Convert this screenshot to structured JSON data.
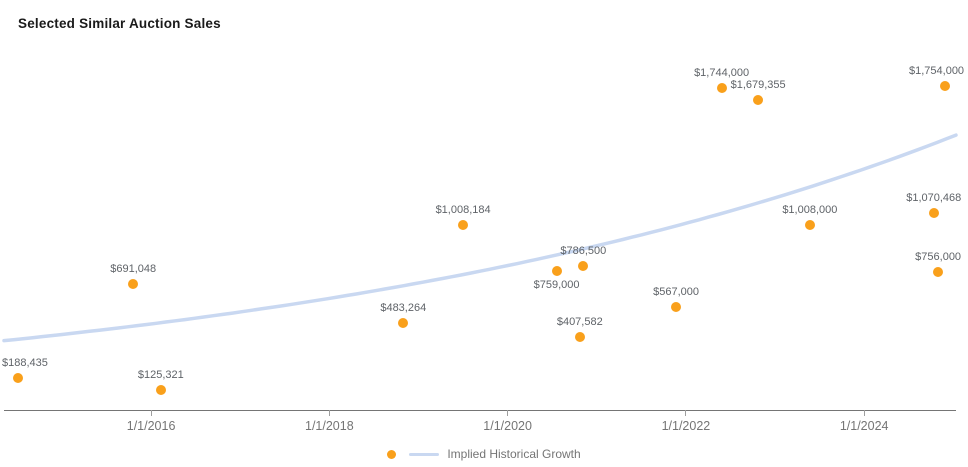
{
  "colors": {
    "point": "#F9A01B",
    "trend": "#C9D8F1",
    "axis": "#757575",
    "tick": "#9E9E9E",
    "point_label": "#5F6368",
    "tick_label": "#757575",
    "legend_text": "#757575",
    "title": "#1A1A1A",
    "background": "#FFFFFF"
  },
  "chart_data": {
    "type": "scatter",
    "title": "Selected Similar Auction Sales",
    "xlabel": "",
    "ylabel": "",
    "xlim": [
      2014.35,
      2025.03
    ],
    "ylim": [
      0,
      2000000
    ],
    "grid": false,
    "legend_position": "bottom-center",
    "x_axis": {
      "ticks": [
        {
          "year": 2016,
          "label": "1/1/2016"
        },
        {
          "year": 2018,
          "label": "1/1/2018"
        },
        {
          "year": 2020,
          "label": "1/1/2020"
        },
        {
          "year": 2022,
          "label": "1/1/2022"
        },
        {
          "year": 2024,
          "label": "1/1/2024"
        }
      ]
    },
    "points": [
      {
        "year": 2014.51,
        "value": 188435,
        "label": "$188,435",
        "label_pos": "above"
      },
      {
        "year": 2015.8,
        "value": 691048,
        "label": "$691,048",
        "label_pos": "above"
      },
      {
        "year": 2016.11,
        "value": 125321,
        "label": "$125,321",
        "label_pos": "above"
      },
      {
        "year": 2018.83,
        "value": 483264,
        "label": "$483,264",
        "label_pos": "above"
      },
      {
        "year": 2019.5,
        "value": 1008184,
        "label": "$1,008,184",
        "label_pos": "above"
      },
      {
        "year": 2020.55,
        "value": 759000,
        "label": "$759,000",
        "label_pos": "below"
      },
      {
        "year": 2020.81,
        "value": 407582,
        "label": "$407,582",
        "label_pos": "above"
      },
      {
        "year": 2020.85,
        "value": 786500,
        "label": "$786,500",
        "label_pos": "above"
      },
      {
        "year": 2021.89,
        "value": 567000,
        "label": "$567,000",
        "label_pos": "above"
      },
      {
        "year": 2022.4,
        "value": 1744000,
        "label": "$1,744,000",
        "label_pos": "above"
      },
      {
        "year": 2022.81,
        "value": 1679355,
        "label": "$1,679,355",
        "label_pos": "above"
      },
      {
        "year": 2023.39,
        "value": 1008000,
        "label": "$1,008,000",
        "label_pos": "above"
      },
      {
        "year": 2024.78,
        "value": 1070468,
        "label": "$1,070,468",
        "label_pos": "above"
      },
      {
        "year": 2024.83,
        "value": 756000,
        "label": "$756,000",
        "label_pos": "above"
      },
      {
        "year": 2024.91,
        "value": 1754000,
        "label": "$1,754,000",
        "label_pos": "above"
      }
    ],
    "trend": {
      "name": "Implied Historical Growth",
      "model": "exponential",
      "x_start": 2014.35,
      "start_value": 388000,
      "x_end": 2025.03,
      "end_value": 1490000
    }
  }
}
